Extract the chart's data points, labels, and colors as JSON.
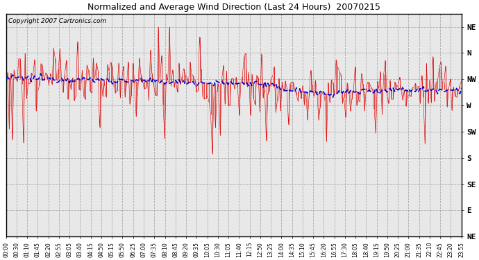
{
  "title": "Normalized and Average Wind Direction (Last 24 Hours)  20070215",
  "copyright": "Copyright 2007 Cartronics.com",
  "background_color": "#ffffff",
  "plot_bg_color": "#e8e8e8",
  "grid_color": "#999999",
  "red_color": "#dd0000",
  "blue_color": "#0000cc",
  "y_labels": [
    "NE",
    "N",
    "NW",
    "W",
    "SW",
    "S",
    "SE",
    "E",
    "NE"
  ],
  "y_values": [
    9,
    8,
    7,
    6,
    5,
    4,
    3,
    2,
    1
  ],
  "x_tick_labels": [
    "00:00",
    "00:30",
    "01:10",
    "01:45",
    "02:20",
    "02:55",
    "03:05",
    "03:40",
    "04:15",
    "04:50",
    "05:15",
    "05:50",
    "06:25",
    "07:00",
    "07:35",
    "08:10",
    "08:45",
    "09:20",
    "09:35",
    "10:05",
    "10:30",
    "11:05",
    "11:40",
    "12:15",
    "12:50",
    "13:25",
    "14:00",
    "14:35",
    "15:10",
    "15:45",
    "16:20",
    "16:55",
    "17:30",
    "18:05",
    "18:40",
    "19:15",
    "19:50",
    "20:25",
    "21:00",
    "21:35",
    "22:10",
    "22:45",
    "23:20",
    "23:55"
  ],
  "seed": 12345,
  "n_points": 288
}
